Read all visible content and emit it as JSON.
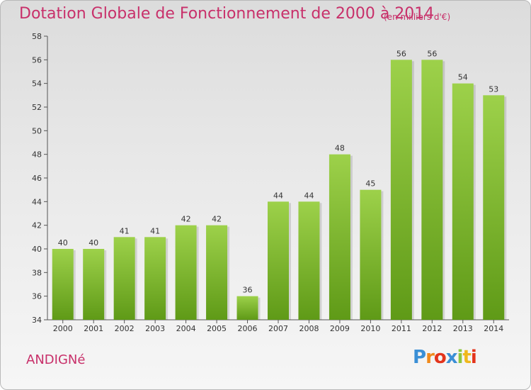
{
  "title": "Dotation Globale de Fonctionnement de 2000 à 2014",
  "subtitle": "(en milliers d'€)",
  "commune": "ANDIGNé",
  "logo": {
    "letters": [
      "P",
      "r",
      "o",
      "x",
      "i",
      "t",
      "i"
    ],
    "colors": [
      "#3a8fd6",
      "#f08a1c",
      "#e3341c",
      "#3a8fd6",
      "#8cc63f",
      "#f0b81c",
      "#e3341c"
    ]
  },
  "colors": {
    "accent": "#c8306a",
    "bar_light": "#9dd14a",
    "bar_dark": "#5f9a17"
  },
  "chart_data": {
    "type": "bar",
    "title": "Dotation Globale de Fonctionnement de 2000 à 2014",
    "subtitle": "(en milliers d'€)",
    "categories": [
      "2000",
      "2001",
      "2002",
      "2003",
      "2004",
      "2005",
      "2006",
      "2007",
      "2008",
      "2009",
      "2010",
      "2011",
      "2012",
      "2013",
      "2014"
    ],
    "values": [
      40,
      40,
      41,
      41,
      42,
      42,
      36,
      44,
      44,
      48,
      45,
      56,
      56,
      54,
      53
    ],
    "ylim": [
      34,
      58
    ],
    "yticks": [
      34,
      36,
      38,
      40,
      42,
      44,
      46,
      48,
      50,
      52,
      54,
      56,
      58
    ],
    "grid": false,
    "xlabel": "",
    "ylabel": ""
  }
}
